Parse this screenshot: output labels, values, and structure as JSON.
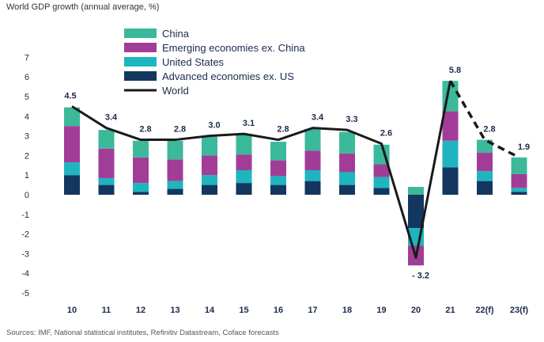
{
  "header": {
    "subtitle": "World GDP growth (annual average, %)"
  },
  "footer": {
    "source": "Sources: IMF, National statistical institutes, Refinitiv Datastream, Coface forecasts"
  },
  "chart_data": {
    "type": "bar",
    "stacked": true,
    "title": "World GDP growth (annual average, %)",
    "categories": [
      "10",
      "11",
      "12",
      "13",
      "14",
      "15",
      "16",
      "17",
      "18",
      "19",
      "20",
      "21",
      "22(f)",
      "23(f)"
    ],
    "ylim": [
      -5,
      7
    ],
    "yticks": [
      7,
      6,
      5,
      4,
      3,
      2,
      1,
      0,
      -1,
      -2,
      -3,
      -4,
      -5
    ],
    "series": [
      {
        "name": "Advanced economies ex. US",
        "color": "#13375e",
        "values": [
          1.0,
          0.5,
          0.15,
          0.3,
          0.5,
          0.6,
          0.5,
          0.7,
          0.5,
          0.35,
          -1.7,
          1.4,
          0.7,
          0.15
        ]
      },
      {
        "name": "United States",
        "color": "#1eb5c0",
        "values": [
          0.65,
          0.35,
          0.45,
          0.4,
          0.5,
          0.65,
          0.45,
          0.55,
          0.65,
          0.55,
          -0.9,
          1.35,
          0.5,
          0.2
        ]
      },
      {
        "name": "Emerging economies ex. China",
        "color": "#a23d97",
        "values": [
          1.85,
          1.5,
          1.3,
          1.1,
          1.0,
          0.8,
          0.8,
          1.0,
          0.95,
          0.65,
          -1.0,
          1.5,
          0.95,
          0.7
        ]
      },
      {
        "name": "China",
        "color": "#3bb99a",
        "values": [
          0.95,
          0.95,
          0.85,
          0.95,
          0.95,
          1.0,
          0.95,
          1.1,
          1.1,
          1.0,
          0.4,
          1.55,
          0.65,
          0.85
        ]
      }
    ],
    "world": {
      "name": "World",
      "values": [
        4.5,
        3.4,
        2.8,
        2.8,
        3.0,
        3.1,
        2.8,
        3.4,
        3.3,
        2.6,
        -3.2,
        5.8,
        2.8,
        1.9
      ],
      "labels": [
        "4.5",
        "3.4",
        "2.8",
        "2.8",
        "3.0",
        "3.1",
        "2.8",
        "3.4",
        "3.3",
        "2.6",
        "- 3.2",
        "5.8",
        "2.8",
        "1.9"
      ],
      "forecast_from_index": 11
    },
    "legend_order": [
      "China",
      "Emerging economies ex. China",
      "United States",
      "Advanced economies ex. US",
      "World"
    ],
    "legend_position": "top-left"
  }
}
